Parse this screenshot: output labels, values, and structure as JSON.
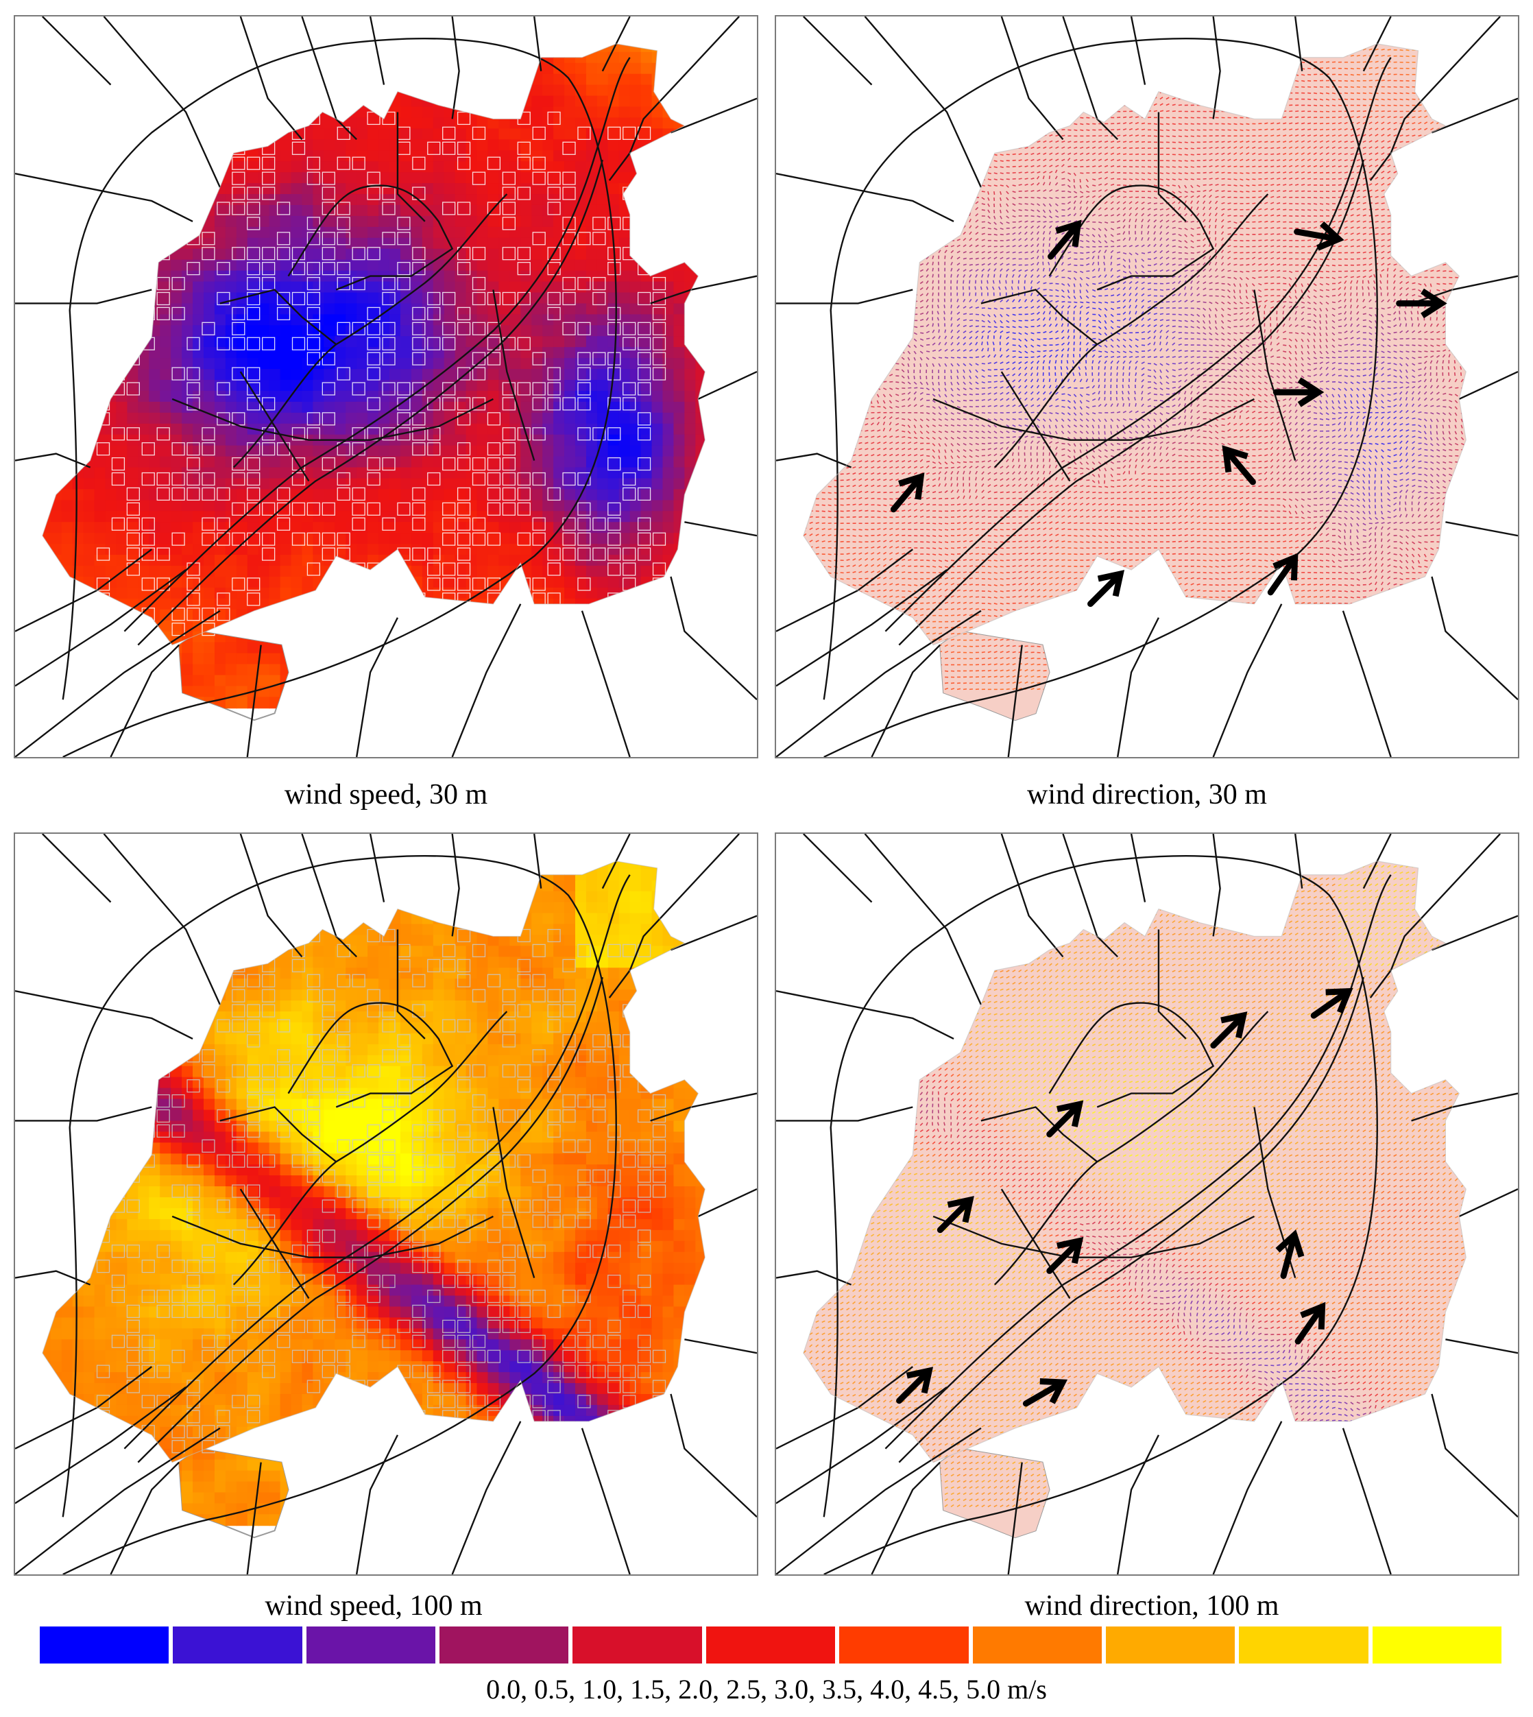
{
  "panels": [
    {
      "id": "p1",
      "caption": "wind speed, 30 m",
      "kind": "speed",
      "level": "30m"
    },
    {
      "id": "p2",
      "caption": "wind direction, 30 m",
      "kind": "direction",
      "level": "30m"
    },
    {
      "id": "p3",
      "caption": "wind speed, 100 m",
      "kind": "speed",
      "level": "100m"
    },
    {
      "id": "p4",
      "caption": "wind direction, 100 m",
      "kind": "direction",
      "level": "100m"
    }
  ],
  "legend": {
    "colors": [
      "#0000ff",
      "#3b12d4",
      "#6a14a8",
      "#a0145f",
      "#d8102a",
      "#f01410",
      "#ff3c00",
      "#ff7a00",
      "#ffaa00",
      "#ffd400",
      "#ffff00"
    ],
    "label": "0.0, 0.5, 1.0, 1.5, 2.0, 2.5, 3.0, 3.5, 4.0, 4.5, 5.0 m/s"
  },
  "colors": {
    "road": "#111111",
    "outline": "#9a9a9a",
    "grid_speed": "#ffffff",
    "grid_speed_100": "#c8c8c8"
  }
}
